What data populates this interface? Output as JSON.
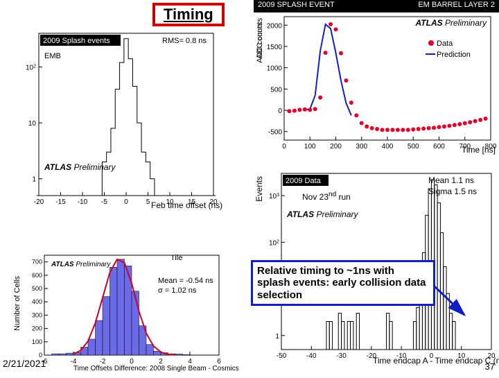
{
  "title": "Timing",
  "footer_date": "2/21/2021",
  "footer_page": "37",
  "atlas_text": "ATLAS",
  "preliminary_text": "Preliminary",
  "callout_text": "Relative timing to ~1ns with splash events: early collision data selection",
  "panel1": {
    "title": "2009 Splash events",
    "rms_text": "RMS= 0.8 ns",
    "subsys": "EMB",
    "xlabel": "Feb time offset (ns)",
    "xlim": [
      -20,
      20
    ],
    "xtick_step": 5,
    "ylim_log": [
      0.5,
      400
    ],
    "yticks": [
      1,
      10,
      100
    ],
    "ylabels": [
      "1",
      "10",
      "10^2"
    ],
    "hist_bins": [
      -20,
      -19,
      -18,
      -17,
      -16,
      -15,
      -14,
      -13,
      -12,
      -11,
      -10,
      -9,
      -8,
      -7,
      -6,
      -5,
      -4,
      -3,
      -2,
      -1,
      0,
      1,
      2,
      3,
      4,
      5,
      6,
      7,
      8,
      9,
      10,
      11,
      12,
      13,
      14,
      15,
      16,
      17,
      18,
      19,
      20
    ],
    "hist_vals": [
      0,
      0,
      0,
      0,
      0,
      0,
      0,
      0,
      0,
      0,
      0,
      0,
      0,
      0,
      0,
      2,
      3,
      8,
      40,
      120,
      320,
      140,
      45,
      10,
      3,
      2,
      1,
      0,
      0,
      0,
      0,
      0,
      0,
      0,
      0,
      0,
      0,
      0,
      0,
      0,
      0
    ]
  },
  "panel2": {
    "header_left": "2009 SPLASH EVENT",
    "header_right": "EM BARREL LAYER 2",
    "ylabel": "ADC counts",
    "xlabel": "Time [ns]",
    "xlim": [
      0,
      800
    ],
    "xtick_step": 100,
    "ylim": [
      -700,
      2200
    ],
    "ytick_step": 500,
    "yticks": [
      -500,
      0,
      500,
      1000,
      1500,
      2000
    ],
    "legend_data": "Data",
    "legend_pred": "Prediction",
    "data_color": "#e2002a",
    "pred_color": "#1020c0",
    "data_x": [
      20,
      40,
      60,
      80,
      100,
      120,
      140,
      160,
      180,
      200,
      220,
      240,
      260,
      280,
      300,
      320,
      340,
      360,
      380,
      400,
      420,
      440,
      460,
      480,
      500,
      520,
      540,
      560,
      580,
      600,
      620,
      640,
      660,
      680,
      700,
      720,
      740,
      760,
      780
    ],
    "data_y": [
      -20,
      -10,
      10,
      20,
      10,
      30,
      300,
      1350,
      2020,
      1900,
      1340,
      700,
      180,
      -120,
      -300,
      -380,
      -420,
      -440,
      -460,
      -460,
      -460,
      -460,
      -460,
      -460,
      -450,
      -440,
      -430,
      -420,
      -410,
      -395,
      -380,
      -365,
      -345,
      -325,
      -305,
      -280,
      -255,
      -225,
      -195
    ],
    "pred_x": [
      80,
      100,
      120,
      140,
      160,
      180,
      200,
      220,
      240,
      260
    ],
    "pred_y": [
      10,
      30,
      350,
      1400,
      2020,
      1920,
      1350,
      700,
      170,
      -120
    ]
  },
  "panel3": {
    "data_label": "2009 Data",
    "mean_text": "Mean  1.1 ns",
    "sigma_text": "Sigma 1.5 ns",
    "ylabel": "Events",
    "xlabel": "Time endcap A - Time endcap C (ns)",
    "xlim": [
      -50,
      20
    ],
    "xticks": [
      -50,
      -40,
      -30,
      -20,
      -10,
      0,
      10,
      20
    ],
    "ylim_log": [
      0.5,
      3000
    ],
    "yticks": [
      1,
      10,
      100,
      1000
    ],
    "ylabels": [
      "1",
      "10",
      "10^2",
      "10^3"
    ],
    "hist_edges": [
      -50,
      -45,
      -40,
      -35,
      -30,
      -25,
      -20,
      -15,
      -10,
      -5,
      -4,
      -3,
      -2,
      -1,
      0,
      1,
      2,
      3,
      4,
      5,
      6,
      10,
      15,
      20
    ],
    "hist_bins_x": [
      -35,
      -34,
      -33,
      -32,
      -31,
      -30,
      -29,
      -28,
      -27,
      -26,
      -25,
      -20,
      -15,
      -14,
      -7,
      -6,
      -5,
      -4,
      -3,
      -2,
      -1,
      0,
      1,
      2,
      3,
      4,
      5,
      6,
      7
    ],
    "hist_bins_w": [
      1,
      1,
      1,
      1,
      1,
      1,
      1,
      1,
      1,
      1,
      1,
      1,
      1,
      1,
      1,
      1,
      1,
      1,
      1,
      1,
      1,
      1,
      1,
      1,
      1,
      1,
      1,
      1,
      1
    ],
    "hist_vals": [
      2,
      2,
      0,
      0,
      3,
      2,
      0,
      2,
      2,
      0,
      3,
      0,
      3,
      2,
      0,
      2,
      4,
      12,
      60,
      380,
      1400,
      2200,
      1700,
      700,
      160,
      30,
      8,
      3,
      2
    ],
    "arrow_color": "#1020c0"
  },
  "panel4": {
    "tile_label": "Tile",
    "mean_text": "Mean = -0.54 ns",
    "sigma_text": "σ = 1.02 ns",
    "ylabel": "Number of Cells",
    "xlabel": "Time Offsets Difference: 2008 Single Beam - Cosmics",
    "xlim": [
      -6,
      6
    ],
    "xtick_step": 2,
    "ylim": [
      0,
      750
    ],
    "ytick_step": 100,
    "bar_color": "#6b6be8",
    "fit_color": "#d00020",
    "bins_x": [
      -5.5,
      -5,
      -4.5,
      -4,
      -3.5,
      -3,
      -2.5,
      -2,
      -1.5,
      -1,
      -0.5,
      0,
      0.5,
      1,
      1.5,
      2,
      2.5,
      3,
      3.5
    ],
    "bin_w": 0.5,
    "vals": [
      10,
      10,
      15,
      20,
      60,
      120,
      260,
      440,
      660,
      720,
      670,
      480,
      220,
      80,
      30,
      18,
      10,
      8,
      4
    ],
    "fit_pts_x": [
      -4,
      -3.5,
      -3,
      -2.5,
      -2,
      -1.5,
      -1,
      -0.5,
      0,
      0.5,
      1,
      1.5,
      2,
      2.5,
      3
    ],
    "fit_pts_y": [
      8,
      35,
      105,
      240,
      430,
      620,
      720,
      695,
      540,
      330,
      165,
      68,
      23,
      6,
      1
    ]
  },
  "note_nov": "Nov 23",
  "note_nov_sup": "nd",
  "note_nov_tail": " run"
}
